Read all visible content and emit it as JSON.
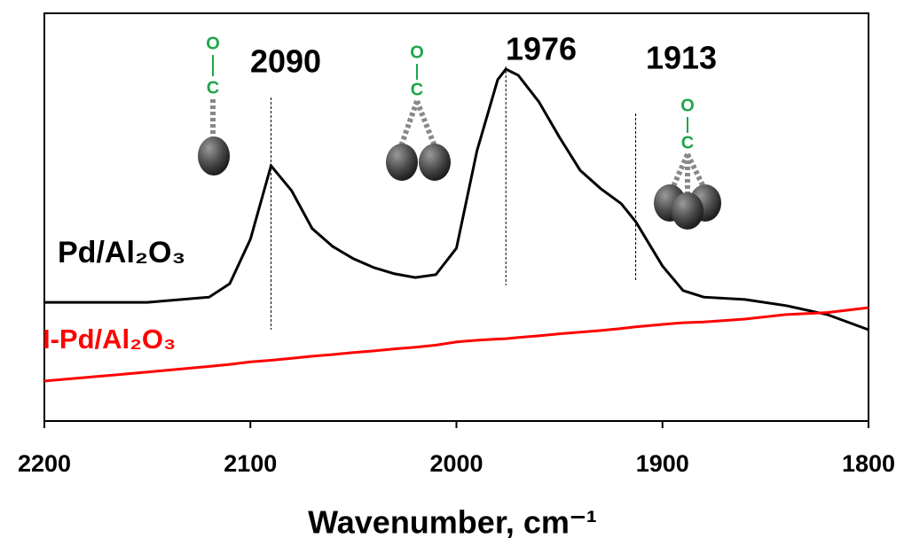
{
  "chart_data": {
    "type": "line",
    "x_label": "Wavenumber, cm⁻¹",
    "xlim": [
      2200,
      1800
    ],
    "xticks": [
      2200,
      2100,
      2000,
      1900,
      1800
    ],
    "ylim": [
      0,
      100
    ],
    "x": [
      2200,
      2150,
      2120,
      2110,
      2100,
      2090,
      2080,
      2070,
      2060,
      2050,
      2040,
      2030,
      2020,
      2010,
      2000,
      1990,
      1980,
      1976,
      1970,
      1960,
      1950,
      1940,
      1930,
      1920,
      1913,
      1900,
      1890,
      1880,
      1860,
      1840,
      1820,
      1800
    ],
    "series": [
      {
        "name": "Pd/Al₂O₃",
        "color": "#000000",
        "values": [
          29.1,
          29.1,
          30.4,
          33.7,
          44.6,
          62.6,
          56.5,
          47.2,
          42.8,
          39.8,
          37.6,
          36.1,
          35.2,
          35.9,
          42.4,
          66.3,
          83.7,
          86.3,
          84.8,
          78.3,
          69.6,
          61.5,
          57.0,
          53.3,
          48.9,
          38.0,
          32.0,
          30.4,
          29.8,
          28.3,
          26.1,
          22.4
        ]
      },
      {
        "name": "I-Pd/Al₂O₃",
        "color": "#ff0000",
        "values": [
          9.8,
          12.0,
          13.4,
          13.9,
          14.5,
          14.9,
          15.4,
          15.9,
          16.3,
          16.8,
          17.2,
          17.7,
          18.1,
          18.6,
          19.4,
          19.8,
          20.1,
          20.2,
          20.5,
          20.9,
          21.4,
          21.8,
          22.2,
          22.7,
          23.1,
          23.7,
          24.1,
          24.3,
          25.0,
          26.1,
          26.6,
          27.8
        ]
      }
    ],
    "peaks": [
      2090,
      1976,
      1913
    ],
    "adsorbate_atoms": [
      "C",
      "O"
    ]
  }
}
